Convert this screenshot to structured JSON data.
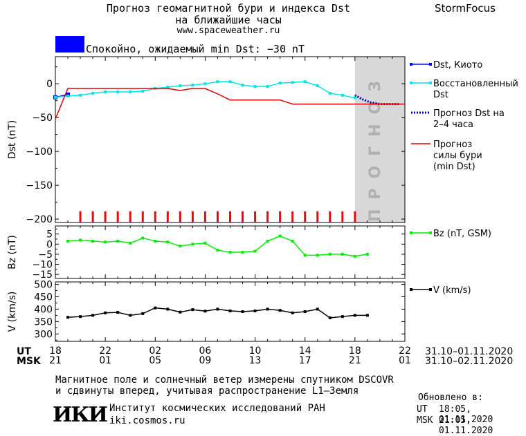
{
  "header": {
    "title_line1": "Прогноз геомагнитной бури и индекса Dst",
    "title_line2": "на ближайшие часы",
    "url": "www.spaceweather.ru",
    "brand": "StormFocus"
  },
  "status": {
    "text": "Спокойно, ожидаемый min Dst: −30 nT",
    "color": "#0000ff"
  },
  "time_axis": {
    "ut_label": "UT",
    "msk_label": "MSK",
    "ut_ticks": [
      "18",
      "22",
      "02",
      "06",
      "10",
      "14",
      "18",
      "22"
    ],
    "msk_ticks": [
      "21",
      "01",
      "05",
      "09",
      "13",
      "17",
      "21",
      "01"
    ],
    "ut_range": "31.10–01.11.2020",
    "msk_range": "31.10–02.11.2020"
  },
  "footer": {
    "note_line1": "Магнитное поле и солнечный ветер измерены спутником DSCOVR",
    "note_line2": "и сдвинуты вперед, учитывая распространение L1–Земля",
    "institute": "Институт космических исследований РАН",
    "site": "iki.cosmos.ru",
    "logo_text": "ИКИ",
    "updated_title": "Обновлено в:",
    "updated_ut_label": "UT",
    "updated_ut": "18:05, 01.11.2020",
    "updated_msk_label": "MSK",
    "updated_msk": "21:05, 01.11.2020"
  },
  "chart_data": [
    {
      "type": "line",
      "panel": "dst",
      "ylabel": "Dst (nT)",
      "ylim": [
        -205,
        40
      ],
      "yticks": [
        0,
        -50,
        -100,
        -150,
        -200
      ],
      "xlim": [
        0,
        28
      ],
      "x_unit": "hours since 18 UT 31.10",
      "forecast_region": {
        "x_start": 24,
        "x_end": 28,
        "label": "ПРОГНОЗ",
        "color": "#d8d8d8"
      },
      "series": [
        {
          "name": "Dst, Киото",
          "color": "#0000ff",
          "style": "solid-square",
          "x": [
            0,
            1
          ],
          "y": [
            -20,
            -16
          ]
        },
        {
          "name": "Восстановленный Dst",
          "color": "#00e5e5",
          "style": "solid-square",
          "x": [
            0,
            1,
            2,
            3,
            4,
            5,
            6,
            7,
            8,
            9,
            10,
            11,
            12,
            13,
            14,
            15,
            16,
            17,
            18,
            19,
            20,
            21,
            22,
            23,
            24
          ],
          "y": [
            -20,
            -18,
            -17,
            -14,
            -12,
            -12,
            -12,
            -11,
            -7,
            -5,
            -3,
            -2,
            0,
            3,
            3,
            -2,
            -4,
            -4,
            1,
            2,
            3,
            -3,
            -14,
            -17,
            -21
          ]
        },
        {
          "name": "Прогноз Dst на 2–4 часа",
          "color": "#0000aa",
          "style": "dotted",
          "x": [
            24,
            24.6,
            25.3,
            26,
            26.8,
            27.5
          ],
          "y": [
            -17,
            -23,
            -28,
            -30,
            -30,
            -30
          ]
        },
        {
          "name": "Прогноз силы бури (min Dst)",
          "color": "#dd0000",
          "style": "solid",
          "x": [
            0,
            1,
            2,
            3,
            4,
            5,
            6,
            7,
            8,
            9,
            10,
            11,
            12,
            13,
            14,
            15,
            16,
            17,
            18,
            19,
            20,
            21,
            22,
            23,
            24,
            25,
            26,
            27,
            28
          ],
          "y": [
            -52,
            -7,
            -7,
            -7,
            -7,
            -7,
            -7,
            -7,
            -7,
            -7,
            -10,
            -7,
            -7,
            -15,
            -24,
            -24,
            -24,
            -24,
            -24,
            -30,
            -30,
            -30,
            -30,
            -30,
            -30,
            -30,
            -30,
            -30,
            -30
          ]
        }
      ],
      "tick_marks": {
        "color": "#ff0000",
        "x": [
          2,
          3,
          4,
          5,
          6,
          7,
          8,
          9,
          10,
          11,
          12,
          13,
          14,
          15,
          16,
          17,
          18,
          19,
          20,
          21,
          22,
          23,
          24
        ]
      }
    },
    {
      "type": "line",
      "panel": "bz",
      "ylabel": "Bz (nT)",
      "ylim": [
        -17,
        9
      ],
      "yticks": [
        5,
        0,
        -5,
        -10,
        -15
      ],
      "xlim": [
        0,
        28
      ],
      "series": [
        {
          "name": "Bz (nT, GSM)",
          "color": "#00ee00",
          "style": "solid-square",
          "x": [
            1,
            2,
            3,
            4,
            5,
            6,
            7,
            8,
            9,
            10,
            11,
            12,
            13,
            14,
            15,
            16,
            17,
            18,
            19,
            20,
            21,
            22,
            23,
            24,
            25
          ],
          "y": [
            1.5,
            2,
            1.5,
            1,
            1.5,
            0.5,
            3,
            1.5,
            1,
            -1,
            0,
            0.5,
            -3,
            -4,
            -4,
            -3.5,
            1.5,
            4,
            1.5,
            -5.5,
            -5.5,
            -5,
            -5,
            -6,
            -5
          ]
        }
      ]
    },
    {
      "type": "line",
      "panel": "v",
      "ylabel": "V (km/s)",
      "ylim": [
        270,
        510
      ],
      "yticks": [
        500,
        450,
        400,
        350,
        300
      ],
      "xlim": [
        0,
        28
      ],
      "series": [
        {
          "name": "V (km/s)",
          "color": "#000000",
          "style": "solid-square",
          "x": [
            1,
            2,
            3,
            4,
            5,
            6,
            7,
            8,
            9,
            10,
            11,
            12,
            13,
            14,
            15,
            16,
            17,
            18,
            19,
            20,
            21,
            22,
            23,
            24,
            25
          ],
          "y": [
            367,
            370,
            375,
            385,
            387,
            375,
            382,
            405,
            400,
            388,
            398,
            392,
            400,
            393,
            390,
            393,
            400,
            395,
            385,
            390,
            400,
            365,
            370,
            375,
            375
          ]
        }
      ]
    }
  ]
}
